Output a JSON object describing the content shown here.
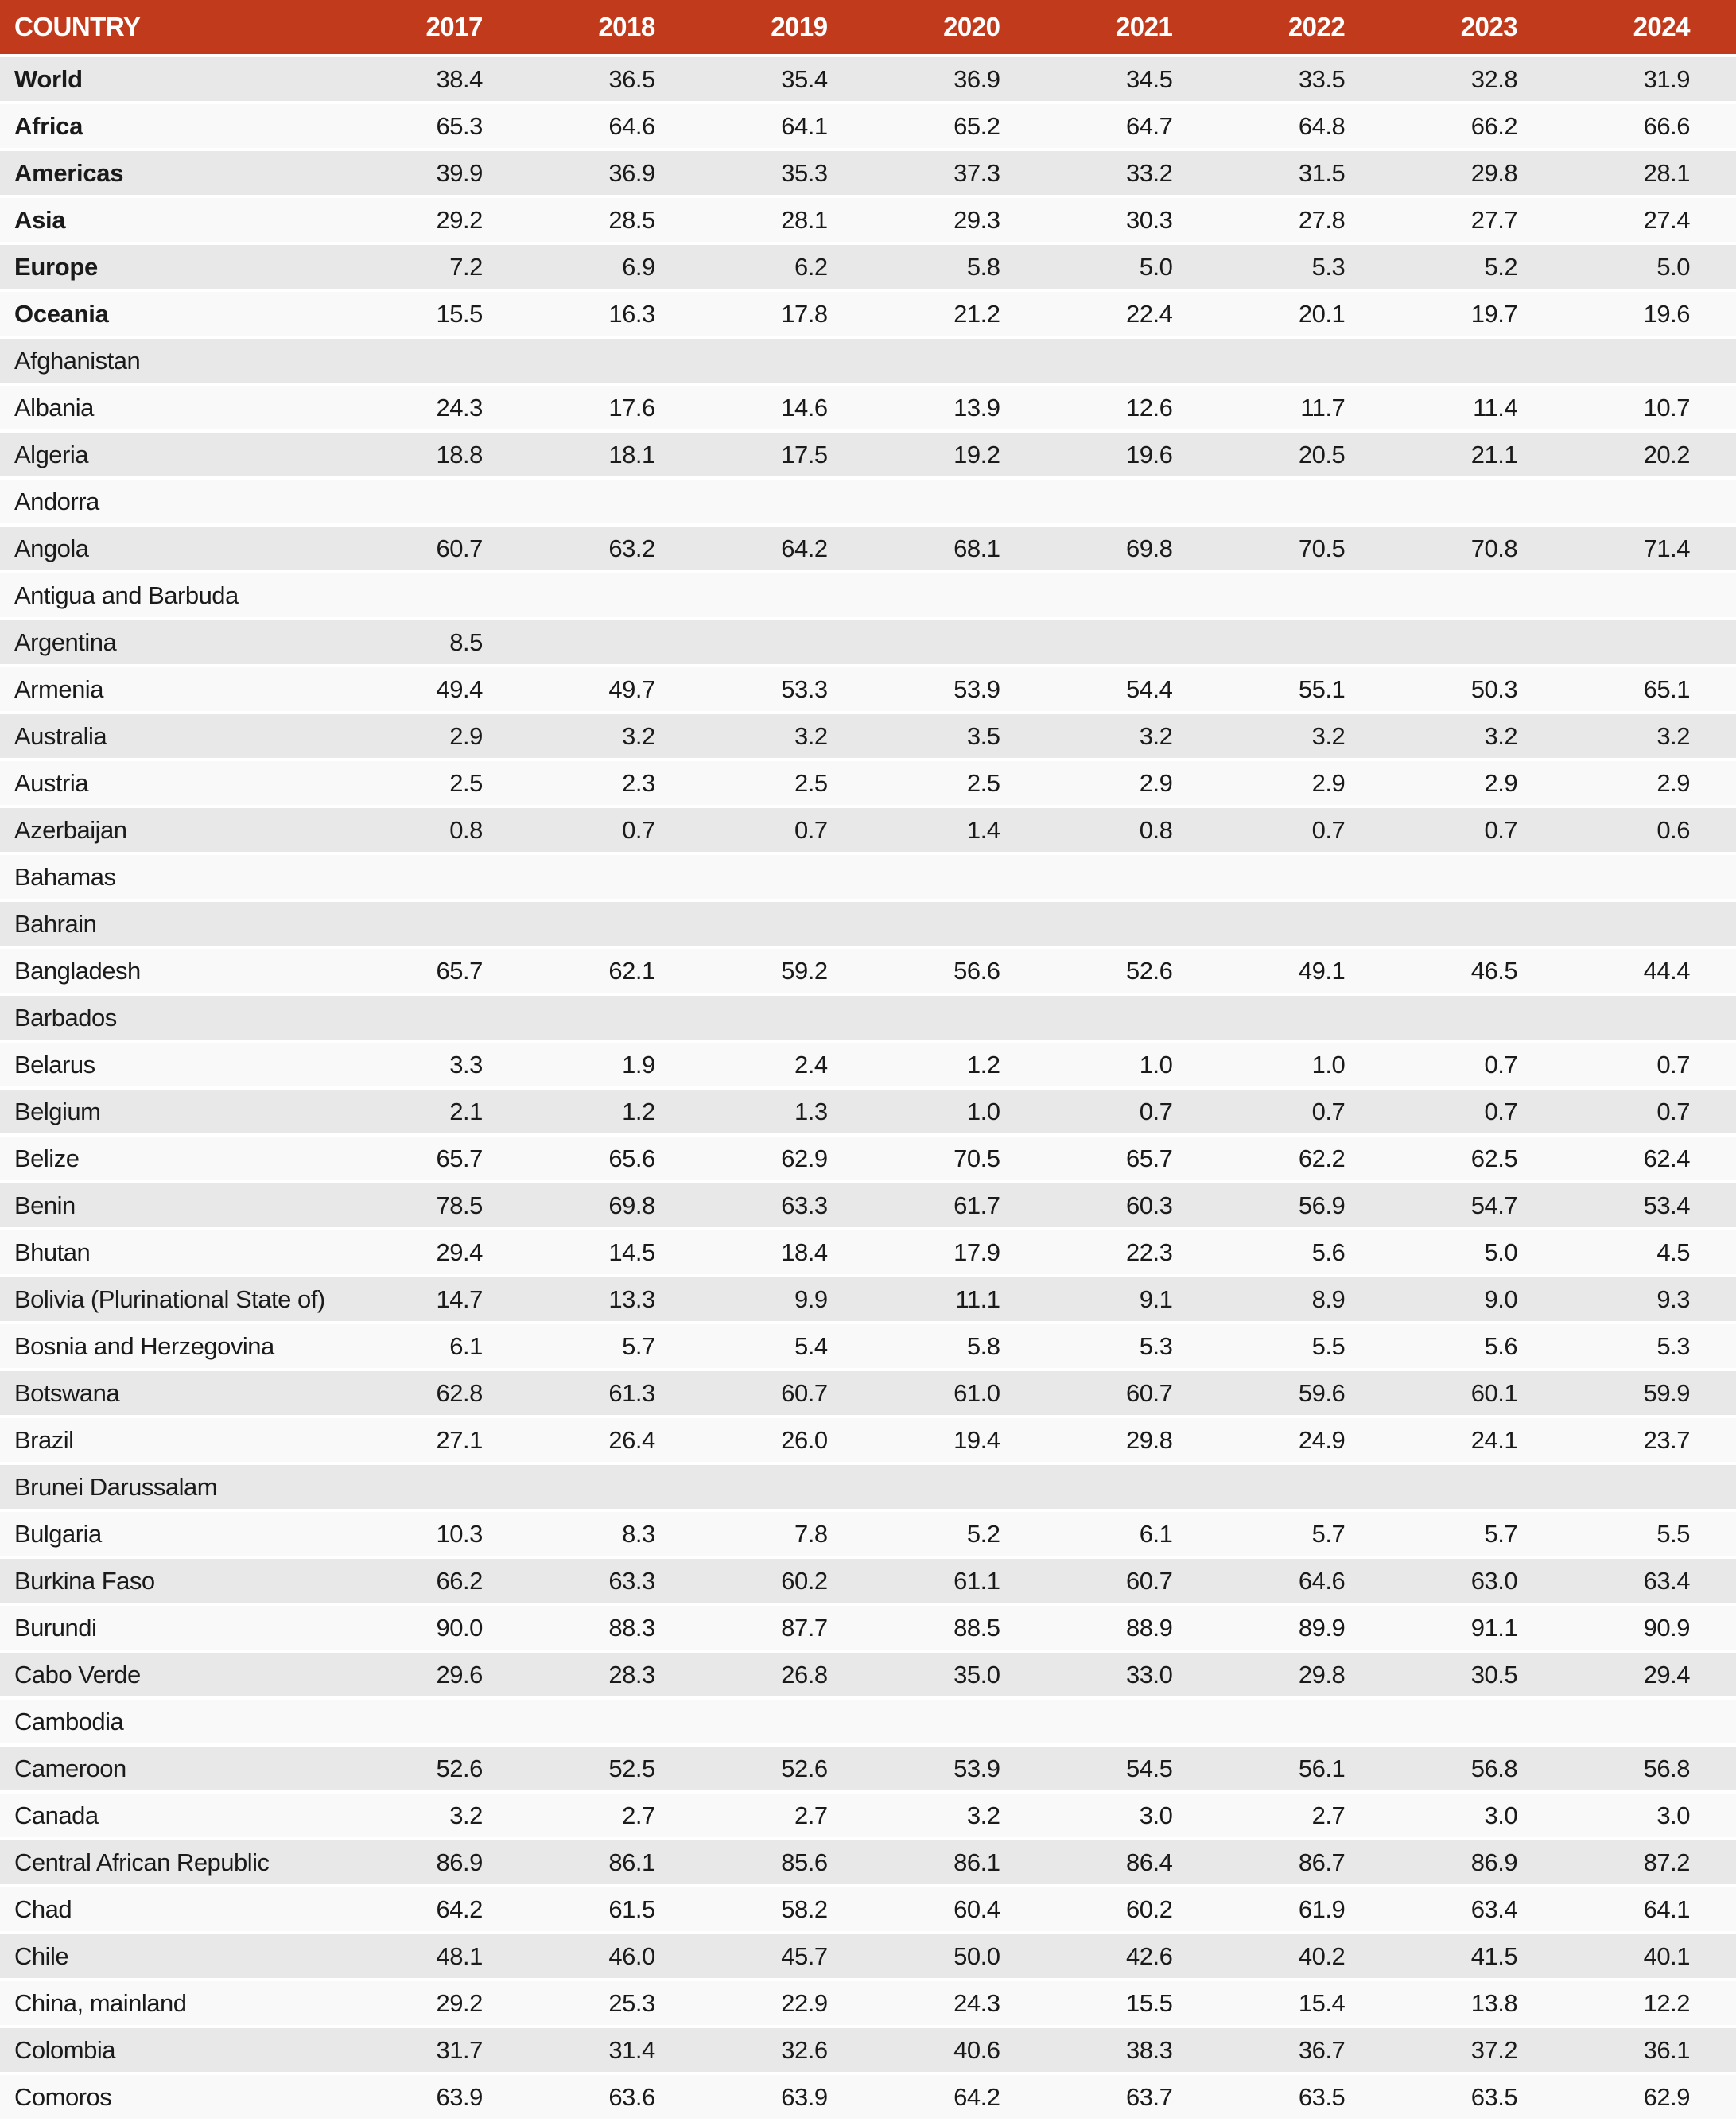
{
  "colors": {
    "header_bg": "#C13A1B",
    "header_text": "#FFFFFF",
    "row_odd": "#E8E8E8",
    "row_even": "#F9F9F9",
    "text": "#1A1A1A",
    "row_gap": "#FFFFFF"
  },
  "chart_data": {
    "type": "table",
    "columns": [
      "COUNTRY",
      "2017",
      "2018",
      "2019",
      "2020",
      "2021",
      "2022",
      "2023",
      "2024"
    ],
    "rows": [
      {
        "name": "World",
        "bold": true,
        "values": [
          "38.4",
          "36.5",
          "35.4",
          "36.9",
          "34.5",
          "33.5",
          "32.8",
          "31.9"
        ]
      },
      {
        "name": "Africa",
        "bold": true,
        "values": [
          "65.3",
          "64.6",
          "64.1",
          "65.2",
          "64.7",
          "64.8",
          "66.2",
          "66.6"
        ]
      },
      {
        "name": "Americas",
        "bold": true,
        "values": [
          "39.9",
          "36.9",
          "35.3",
          "37.3",
          "33.2",
          "31.5",
          "29.8",
          "28.1"
        ]
      },
      {
        "name": "Asia",
        "bold": true,
        "values": [
          "29.2",
          "28.5",
          "28.1",
          "29.3",
          "30.3",
          "27.8",
          "27.7",
          "27.4"
        ]
      },
      {
        "name": "Europe",
        "bold": true,
        "values": [
          "7.2",
          "6.9",
          "6.2",
          "5.8",
          "5.0",
          "5.3",
          "5.2",
          "5.0"
        ]
      },
      {
        "name": "Oceania",
        "bold": true,
        "values": [
          "15.5",
          "16.3",
          "17.8",
          "21.2",
          "22.4",
          "20.1",
          "19.7",
          "19.6"
        ]
      },
      {
        "name": "Afghanistan",
        "bold": false,
        "values": [
          "",
          "",
          "",
          "",
          "",
          "",
          "",
          ""
        ]
      },
      {
        "name": "Albania",
        "bold": false,
        "values": [
          "24.3",
          "17.6",
          "14.6",
          "13.9",
          "12.6",
          "11.7",
          "11.4",
          "10.7"
        ]
      },
      {
        "name": "Algeria",
        "bold": false,
        "values": [
          "18.8",
          "18.1",
          "17.5",
          "19.2",
          "19.6",
          "20.5",
          "21.1",
          "20.2"
        ]
      },
      {
        "name": "Andorra",
        "bold": false,
        "values": [
          "",
          "",
          "",
          "",
          "",
          "",
          "",
          ""
        ]
      },
      {
        "name": "Angola",
        "bold": false,
        "values": [
          "60.7",
          "63.2",
          "64.2",
          "68.1",
          "69.8",
          "70.5",
          "70.8",
          "71.4"
        ]
      },
      {
        "name": "Antigua and Barbuda",
        "bold": false,
        "values": [
          "",
          "",
          "",
          "",
          "",
          "",
          "",
          ""
        ]
      },
      {
        "name": "Argentina",
        "bold": false,
        "values": [
          "8.5",
          "",
          "",
          "",
          "",
          "",
          "",
          ""
        ]
      },
      {
        "name": "Armenia",
        "bold": false,
        "values": [
          "49.4",
          "49.7",
          "53.3",
          "53.9",
          "54.4",
          "55.1",
          "50.3",
          "65.1"
        ]
      },
      {
        "name": "Australia",
        "bold": false,
        "values": [
          "2.9",
          "3.2",
          "3.2",
          "3.5",
          "3.2",
          "3.2",
          "3.2",
          "3.2"
        ]
      },
      {
        "name": "Austria",
        "bold": false,
        "values": [
          "2.5",
          "2.3",
          "2.5",
          "2.5",
          "2.9",
          "2.9",
          "2.9",
          "2.9"
        ]
      },
      {
        "name": "Azerbaijan",
        "bold": false,
        "values": [
          "0.8",
          "0.7",
          "0.7",
          "1.4",
          "0.8",
          "0.7",
          "0.7",
          "0.6"
        ]
      },
      {
        "name": "Bahamas",
        "bold": false,
        "values": [
          "",
          "",
          "",
          "",
          "",
          "",
          "",
          ""
        ]
      },
      {
        "name": "Bahrain",
        "bold": false,
        "values": [
          "",
          "",
          "",
          "",
          "",
          "",
          "",
          ""
        ]
      },
      {
        "name": "Bangladesh",
        "bold": false,
        "values": [
          "65.7",
          "62.1",
          "59.2",
          "56.6",
          "52.6",
          "49.1",
          "46.5",
          "44.4"
        ]
      },
      {
        "name": "Barbados",
        "bold": false,
        "values": [
          "",
          "",
          "",
          "",
          "",
          "",
          "",
          ""
        ]
      },
      {
        "name": "Belarus",
        "bold": false,
        "values": [
          "3.3",
          "1.9",
          "2.4",
          "1.2",
          "1.0",
          "1.0",
          "0.7",
          "0.7"
        ]
      },
      {
        "name": "Belgium",
        "bold": false,
        "values": [
          "2.1",
          "1.2",
          "1.3",
          "1.0",
          "0.7",
          "0.7",
          "0.7",
          "0.7"
        ]
      },
      {
        "name": "Belize",
        "bold": false,
        "values": [
          "65.7",
          "65.6",
          "62.9",
          "70.5",
          "65.7",
          "62.2",
          "62.5",
          "62.4"
        ]
      },
      {
        "name": "Benin",
        "bold": false,
        "values": [
          "78.5",
          "69.8",
          "63.3",
          "61.7",
          "60.3",
          "56.9",
          "54.7",
          "53.4"
        ]
      },
      {
        "name": "Bhutan",
        "bold": false,
        "values": [
          "29.4",
          "14.5",
          "18.4",
          "17.9",
          "22.3",
          "5.6",
          "5.0",
          "4.5"
        ]
      },
      {
        "name": "Bolivia (Plurinational State of)",
        "bold": false,
        "values": [
          "14.7",
          "13.3",
          "9.9",
          "11.1",
          "9.1",
          "8.9",
          "9.0",
          "9.3"
        ]
      },
      {
        "name": "Bosnia and Herzegovina",
        "bold": false,
        "values": [
          "6.1",
          "5.7",
          "5.4",
          "5.8",
          "5.3",
          "5.5",
          "5.6",
          "5.3"
        ]
      },
      {
        "name": "Botswana",
        "bold": false,
        "values": [
          "62.8",
          "61.3",
          "60.7",
          "61.0",
          "60.7",
          "59.6",
          "60.1",
          "59.9"
        ]
      },
      {
        "name": "Brazil",
        "bold": false,
        "values": [
          "27.1",
          "26.4",
          "26.0",
          "19.4",
          "29.8",
          "24.9",
          "24.1",
          "23.7"
        ]
      },
      {
        "name": "Brunei Darussalam",
        "bold": false,
        "values": [
          "",
          "",
          "",
          "",
          "",
          "",
          "",
          ""
        ]
      },
      {
        "name": "Bulgaria",
        "bold": false,
        "values": [
          "10.3",
          "8.3",
          "7.8",
          "5.2",
          "6.1",
          "5.7",
          "5.7",
          "5.5"
        ]
      },
      {
        "name": "Burkina Faso",
        "bold": false,
        "values": [
          "66.2",
          "63.3",
          "60.2",
          "61.1",
          "60.7",
          "64.6",
          "63.0",
          "63.4"
        ]
      },
      {
        "name": "Burundi",
        "bold": false,
        "values": [
          "90.0",
          "88.3",
          "87.7",
          "88.5",
          "88.9",
          "89.9",
          "91.1",
          "90.9"
        ]
      },
      {
        "name": "Cabo Verde",
        "bold": false,
        "values": [
          "29.6",
          "28.3",
          "26.8",
          "35.0",
          "33.0",
          "29.8",
          "30.5",
          "29.4"
        ]
      },
      {
        "name": "Cambodia",
        "bold": false,
        "values": [
          "",
          "",
          "",
          "",
          "",
          "",
          "",
          ""
        ]
      },
      {
        "name": "Cameroon",
        "bold": false,
        "values": [
          "52.6",
          "52.5",
          "52.6",
          "53.9",
          "54.5",
          "56.1",
          "56.8",
          "56.8"
        ]
      },
      {
        "name": "Canada",
        "bold": false,
        "values": [
          "3.2",
          "2.7",
          "2.7",
          "3.2",
          "3.0",
          "2.7",
          "3.0",
          "3.0"
        ]
      },
      {
        "name": "Central African Republic",
        "bold": false,
        "values": [
          "86.9",
          "86.1",
          "85.6",
          "86.1",
          "86.4",
          "86.7",
          "86.9",
          "87.2"
        ]
      },
      {
        "name": "Chad",
        "bold": false,
        "values": [
          "64.2",
          "61.5",
          "58.2",
          "60.4",
          "60.2",
          "61.9",
          "63.4",
          "64.1"
        ]
      },
      {
        "name": "Chile",
        "bold": false,
        "values": [
          "48.1",
          "46.0",
          "45.7",
          "50.0",
          "42.6",
          "40.2",
          "41.5",
          "40.1"
        ]
      },
      {
        "name": "China, mainland",
        "bold": false,
        "values": [
          "29.2",
          "25.3",
          "22.9",
          "24.3",
          "15.5",
          "15.4",
          "13.8",
          "12.2"
        ]
      },
      {
        "name": "Colombia",
        "bold": false,
        "values": [
          "31.7",
          "31.4",
          "32.6",
          "40.6",
          "38.3",
          "36.7",
          "37.2",
          "36.1"
        ]
      },
      {
        "name": "Comoros",
        "bold": false,
        "values": [
          "63.9",
          "63.6",
          "63.9",
          "64.2",
          "63.7",
          "63.5",
          "63.5",
          "62.9"
        ]
      }
    ]
  }
}
